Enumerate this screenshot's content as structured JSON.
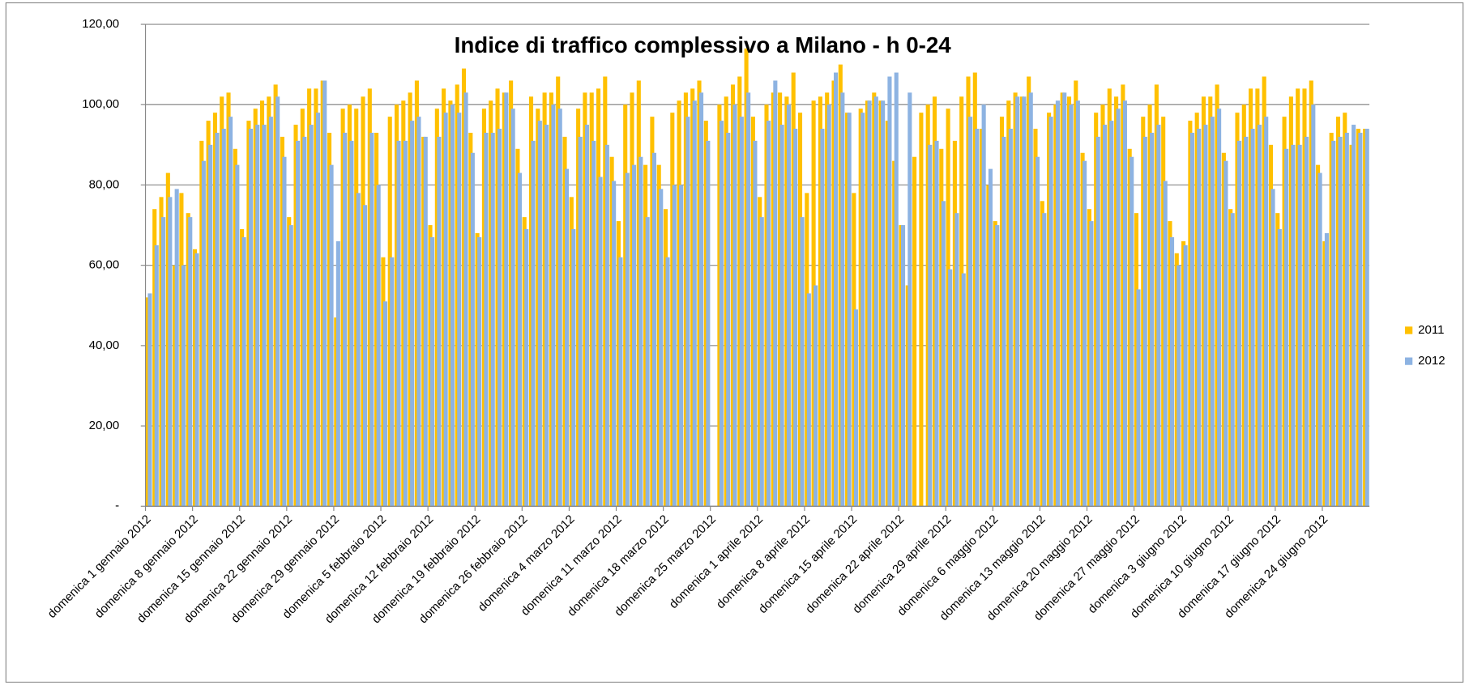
{
  "chart_data": {
    "type": "bar",
    "title": "Indice di traffico complessivo a Milano - h 0-24",
    "categories": [
      "domenica 1 gennaio 2012",
      null,
      null,
      null,
      null,
      null,
      null,
      "domenica 8 gennaio 2012",
      null,
      null,
      null,
      null,
      null,
      null,
      "domenica 15 gennaio 2012",
      null,
      null,
      null,
      null,
      null,
      null,
      "domenica 22 gennaio 2012",
      null,
      null,
      null,
      null,
      null,
      null,
      "domenica 29 gennaio 2012",
      null,
      null,
      null,
      null,
      null,
      null,
      "domenica 5 febbraio 2012",
      null,
      null,
      null,
      null,
      null,
      null,
      "domenica 12 febbraio 2012",
      null,
      null,
      null,
      null,
      null,
      null,
      "domenica 19 febbraio 2012",
      null,
      null,
      null,
      null,
      null,
      null,
      "domenica 26 febbraio 2012",
      null,
      null,
      null,
      null,
      null,
      null,
      "domenica 4 marzo 2012",
      null,
      null,
      null,
      null,
      null,
      null,
      "domenica 11 marzo 2012",
      null,
      null,
      null,
      null,
      null,
      null,
      "domenica 18 marzo 2012",
      null,
      null,
      null,
      null,
      null,
      null,
      "domenica 25 marzo 2012",
      null,
      null,
      null,
      null,
      null,
      null,
      "domenica 1 aprile 2012",
      null,
      null,
      null,
      null,
      null,
      null,
      "domenica 8 aprile 2012",
      null,
      null,
      null,
      null,
      null,
      null,
      "domenica 15 aprile 2012",
      null,
      null,
      null,
      null,
      null,
      null,
      "domenica 22 aprile 2012",
      null,
      null,
      null,
      null,
      null,
      null,
      "domenica 29 aprile 2012",
      null,
      null,
      null,
      null,
      null,
      null,
      "domenica 6 maggio 2012",
      null,
      null,
      null,
      null,
      null,
      null,
      "domenica 13 maggio 2012",
      null,
      null,
      null,
      null,
      null,
      null,
      "domenica 20 maggio 2012",
      null,
      null,
      null,
      null,
      null,
      null,
      "domenica 27 maggio 2012",
      null,
      null,
      null,
      null,
      null,
      null,
      "domenica 3 giugno 2012",
      null,
      null,
      null,
      null,
      null,
      null,
      "domenica 10 giugno 2012",
      null,
      null,
      null,
      null,
      null,
      null,
      "domenica 17 giugno 2012",
      null,
      null,
      null,
      null,
      null,
      null,
      "domenica 24 giugno 2012",
      null,
      null,
      null,
      null,
      null,
      null
    ],
    "series": [
      {
        "name": "2011",
        "color": "#ffc000",
        "values": [
          52,
          74,
          77,
          83,
          60,
          78,
          73,
          64,
          91,
          96,
          98,
          102,
          103,
          89,
          69,
          96,
          99,
          101,
          102,
          105,
          92,
          72,
          95,
          99,
          104,
          104,
          106,
          93,
          47,
          99,
          100,
          99,
          102,
          104,
          93,
          62,
          97,
          100,
          101,
          103,
          106,
          92,
          70,
          99,
          104,
          101,
          105,
          109,
          93,
          68,
          99,
          101,
          104,
          103,
          106,
          89,
          72,
          102,
          99,
          103,
          103,
          107,
          92,
          77,
          99,
          103,
          103,
          104,
          107,
          87,
          71,
          100,
          103,
          106,
          85,
          97,
          85,
          74,
          98,
          101,
          103,
          104,
          106,
          96,
          null,
          100,
          102,
          105,
          107,
          114,
          97,
          77,
          100,
          103,
          103,
          102,
          108,
          98,
          78,
          101,
          102,
          103,
          106,
          110,
          98,
          78,
          99,
          101,
          103,
          101,
          96,
          86,
          70,
          55,
          87,
          98,
          100,
          102,
          89,
          99,
          91,
          102,
          107,
          108,
          94,
          80,
          71,
          97,
          101,
          103,
          102,
          107,
          94,
          76,
          98,
          100,
          103,
          102,
          106,
          88,
          74,
          98,
          100,
          104,
          102,
          105,
          89,
          73,
          97,
          100,
          105,
          97,
          71,
          63,
          66,
          96,
          98,
          102,
          102,
          105,
          88,
          74,
          98,
          100,
          104,
          104,
          107,
          90,
          73,
          97,
          102,
          104,
          104,
          106,
          85,
          66,
          93,
          97,
          98,
          90,
          94,
          94
        ]
      },
      {
        "name": "2012",
        "color": "#8db3e2",
        "values": [
          53,
          65,
          72,
          77,
          79,
          60,
          72,
          63,
          86,
          90,
          93,
          94,
          97,
          85,
          67,
          94,
          95,
          95,
          97,
          102,
          87,
          70,
          91,
          92,
          95,
          98,
          106,
          85,
          66,
          93,
          91,
          78,
          75,
          93,
          80,
          51,
          62,
          91,
          91,
          96,
          97,
          92,
          67,
          92,
          98,
          100,
          98,
          103,
          88,
          67,
          93,
          93,
          94,
          103,
          99,
          83,
          69,
          91,
          96,
          95,
          100,
          99,
          84,
          69,
          92,
          95,
          91,
          82,
          90,
          81,
          62,
          83,
          85,
          87,
          72,
          88,
          79,
          62,
          80,
          80,
          97,
          101,
          103,
          91,
          null,
          96,
          93,
          100,
          97,
          103,
          91,
          72,
          96,
          106,
          95,
          100,
          94,
          72,
          53,
          55,
          94,
          100,
          108,
          103,
          98,
          49,
          98,
          101,
          102,
          101,
          107,
          108,
          70,
          103,
          null,
          null,
          90,
          91,
          76,
          59,
          73,
          58,
          97,
          94,
          100,
          84,
          70,
          92,
          94,
          102,
          102,
          103,
          87,
          73,
          97,
          101,
          103,
          100,
          101,
          86,
          71,
          92,
          95,
          96,
          99,
          101,
          87,
          54,
          92,
          93,
          95,
          81,
          67,
          60,
          65,
          93,
          94,
          95,
          97,
          99,
          86,
          73,
          91,
          92,
          94,
          95,
          97,
          79,
          69,
          89,
          90,
          90,
          92,
          100,
          83,
          68,
          91,
          92,
          93,
          95,
          93,
          94
        ]
      }
    ],
    "ylim": [
      0,
      120
    ],
    "yticks": [
      {
        "value": 0,
        "label": "-"
      },
      {
        "value": 20,
        "label": "20,00"
      },
      {
        "value": 40,
        "label": "40,00"
      },
      {
        "value": 60,
        "label": "60,00"
      },
      {
        "value": 80,
        "label": "80,00"
      },
      {
        "value": 100,
        "label": "100,00"
      },
      {
        "value": 120,
        "label": "120,00"
      }
    ],
    "grid": true,
    "legend": "right"
  }
}
